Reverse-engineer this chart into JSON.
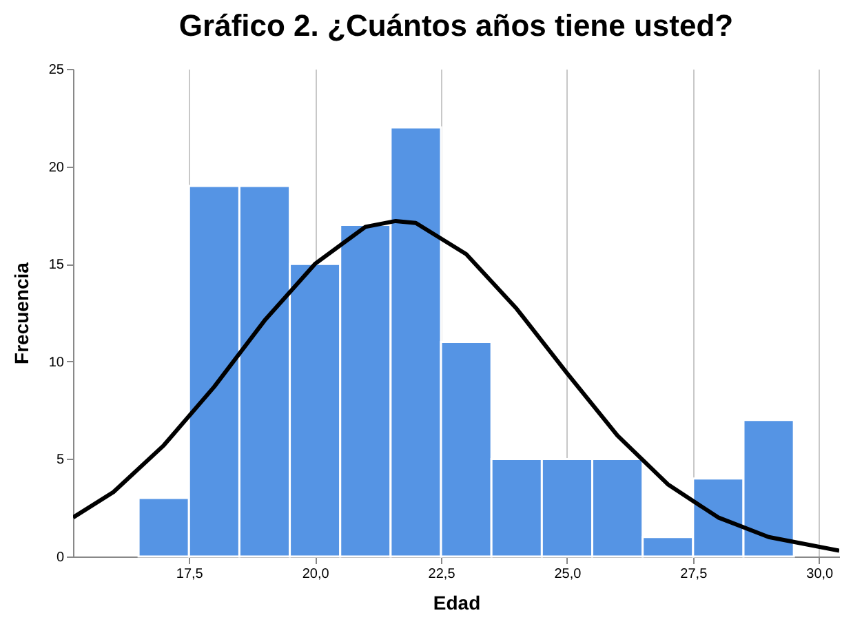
{
  "chart_data": {
    "type": "histogram",
    "title": "Gráfico 2. ¿Cuántos años tiene usted?",
    "xlabel": "Edad",
    "ylabel": "Frecuencia",
    "xlim": [
      15.2,
      30.4
    ],
    "xticks": [
      {
        "value": 17.5,
        "label": "17,5"
      },
      {
        "value": 20,
        "label": "20,0"
      },
      {
        "value": 22.5,
        "label": "22,5"
      },
      {
        "value": 25,
        "label": "25,0"
      },
      {
        "value": 27.5,
        "label": "27,5"
      },
      {
        "value": 30,
        "label": "30,0"
      }
    ],
    "ylim": [
      0,
      25
    ],
    "yticks": [
      0,
      5,
      10,
      15,
      20,
      25
    ],
    "grid": "x",
    "series": [
      {
        "color": "#5594e4",
        "bins": [
          16.5,
          17.5,
          18.5,
          19.5,
          20.5,
          21.5,
          22.5,
          23.5,
          24.5,
          25.5,
          26.5,
          27.5,
          28.5,
          29.5
        ],
        "values": [
          3,
          19,
          19,
          15,
          17,
          22,
          11,
          5,
          5,
          5,
          1,
          4,
          7
        ]
      },
      {
        "type": "line",
        "color": "#000000",
        "x": [
          15.2,
          16,
          17,
          18,
          19,
          20,
          21,
          21.6,
          22,
          23,
          24,
          25,
          26,
          27,
          28,
          29,
          30.4
        ],
        "values": [
          2.0,
          3.3,
          5.7,
          8.7,
          12.1,
          15.0,
          16.9,
          17.2,
          17.1,
          15.5,
          12.7,
          9.4,
          6.2,
          3.7,
          2.0,
          1.0,
          0.3
        ]
      }
    ]
  }
}
